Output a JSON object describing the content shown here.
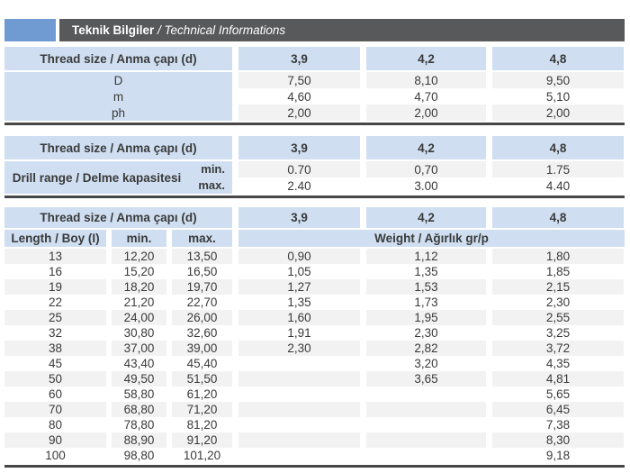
{
  "title": {
    "tr": "Teknik Bilgiler",
    "sep": " / ",
    "en": "Technical Informations"
  },
  "colors": {
    "accent_blue": "#6f9bd2",
    "header_bar": "#58595b",
    "cell_blue": "#cfdff1",
    "row_stripe": "#f2f2f2",
    "rule": "#474747",
    "text": "#3a3a3a"
  },
  "thread_header": {
    "label": "Thread size / Anma çapı (d)",
    "sizes": [
      "3,9",
      "4,2",
      "4,8"
    ]
  },
  "table1": {
    "rows": [
      {
        "label": "D",
        "values": [
          "7,50",
          "8,10",
          "9,50"
        ]
      },
      {
        "label": "m",
        "values": [
          "4,60",
          "4,70",
          "5,10"
        ]
      },
      {
        "label": "ph",
        "values": [
          "2,00",
          "2,00",
          "2,00"
        ]
      }
    ]
  },
  "table2": {
    "label": "Drill range / Delme kapasitesi",
    "rows": [
      {
        "sub": "min.",
        "values": [
          "0.70",
          "0,70",
          "1.75"
        ]
      },
      {
        "sub": "max.",
        "values": [
          "2.40",
          "3.00",
          "4.40"
        ]
      }
    ]
  },
  "table3": {
    "length_header": "Length / Boy (I)",
    "min_header": "min.",
    "max_header": "max.",
    "weight_header": "Weight / Ağırlık gr/p",
    "rows": [
      [
        "13",
        "12,20",
        "13,50",
        "0,90",
        "1,12",
        "1,80"
      ],
      [
        "16",
        "15,20",
        "16,50",
        "1,05",
        "1,35",
        "1,85"
      ],
      [
        "19",
        "18,20",
        "19,70",
        "1,27",
        "1,53",
        "2,15"
      ],
      [
        "22",
        "21,20",
        "22,70",
        "1,35",
        "1,73",
        "2,30"
      ],
      [
        "25",
        "24,00",
        "26,00",
        "1,60",
        "1,95",
        "2,55"
      ],
      [
        "32",
        "30,80",
        "32,60",
        "1,91",
        "2,30",
        "3,25"
      ],
      [
        "38",
        "37,00",
        "39,00",
        "2,30",
        "2,82",
        "3,72"
      ],
      [
        "45",
        "43,40",
        "45,40",
        "",
        "3,20",
        "4,35"
      ],
      [
        "50",
        "49,50",
        "51,50",
        "",
        "3,65",
        "4,81"
      ],
      [
        "60",
        "58,80",
        "61,20",
        "",
        "",
        "5,65"
      ],
      [
        "70",
        "68,80",
        "71,20",
        "",
        "",
        "6,45"
      ],
      [
        "80",
        "78,80",
        "81,20",
        "",
        "",
        "7,38"
      ],
      [
        "90",
        "88,90",
        "91,20",
        "",
        "",
        "8,30"
      ],
      [
        "100",
        "98,80",
        "101,20",
        "",
        "",
        "9,18"
      ]
    ]
  }
}
